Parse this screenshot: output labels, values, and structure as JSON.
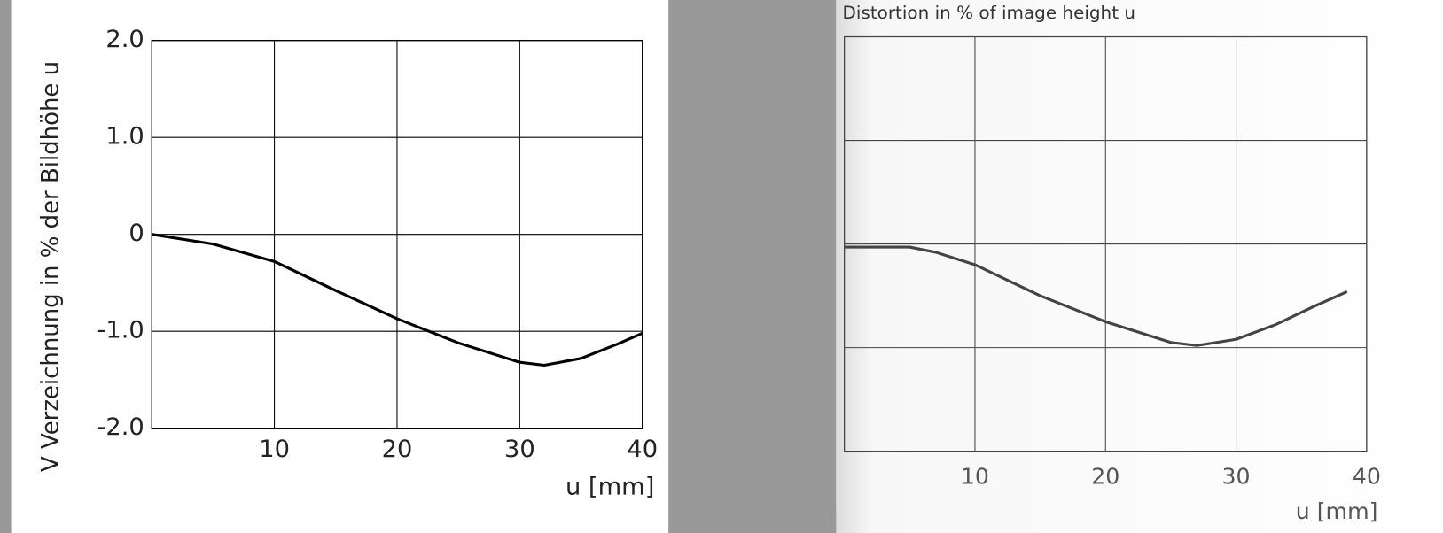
{
  "chart_data": [
    {
      "type": "line",
      "ylabel": "V  Verzeichnung in % der Bildhöhe u",
      "xlabel": "u [mm]",
      "x": [
        0,
        5,
        10,
        15,
        20,
        25,
        30,
        32,
        35,
        38,
        40
      ],
      "values": [
        0,
        -0.1,
        -0.28,
        -0.58,
        -0.87,
        -1.12,
        -1.32,
        -1.35,
        -1.28,
        -1.13,
        -1.02
      ],
      "color": "#000000",
      "xlim": [
        0,
        40
      ],
      "xticks": [
        10,
        20,
        30,
        40
      ],
      "ylim": [
        -2,
        2
      ],
      "yticks": [
        {
          "value": -2,
          "label": "-2.0"
        },
        {
          "value": -1,
          "label": "-1.0"
        },
        0,
        {
          "value": 1,
          "label": "1.0"
        },
        {
          "value": 2,
          "label": "2.0"
        }
      ],
      "grid": true
    },
    {
      "type": "line",
      "title": "Distortion in % of image height u",
      "xlabel": "u [mm]",
      "x": [
        0,
        3,
        5,
        7,
        10,
        15,
        20,
        25,
        27,
        30,
        33,
        36,
        38.5
      ],
      "values": [
        -0.03,
        -0.03,
        -0.03,
        -0.08,
        -0.2,
        -0.5,
        -0.75,
        -0.95,
        -0.98,
        -0.92,
        -0.78,
        -0.6,
        -0.46
      ],
      "color": "#444444",
      "xlim": [
        0,
        40
      ],
      "xticks": [
        10,
        20,
        30,
        40
      ],
      "ylim": [
        -2,
        2
      ],
      "yticks": [
        -1,
        0,
        1
      ],
      "ytick_labels": false,
      "grid": true
    }
  ]
}
